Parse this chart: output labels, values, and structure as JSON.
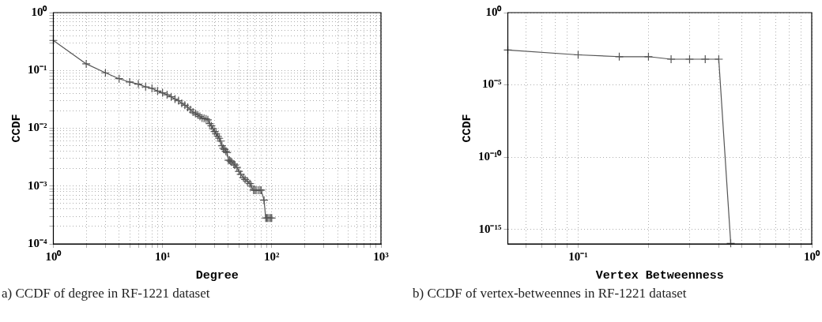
{
  "chart_data": [
    {
      "type": "line",
      "xlabel": "Degree",
      "ylabel": "CCDF",
      "log": "xy",
      "grid": true,
      "marker": "cross",
      "line_style": "solid",
      "xlim": [
        1,
        1000
      ],
      "ylim": [
        0.0001,
        1
      ],
      "xticks": [
        {
          "value": 1,
          "label": "10⁰"
        },
        {
          "value": 2,
          "label": null
        },
        {
          "value": 3,
          "label": null
        },
        {
          "value": 4,
          "label": null
        },
        {
          "value": 5,
          "label": null
        },
        {
          "value": 6,
          "label": null
        },
        {
          "value": 7,
          "label": null
        },
        {
          "value": 8,
          "label": null
        },
        {
          "value": 9,
          "label": null
        },
        {
          "value": 10,
          "label": "10¹"
        },
        {
          "value": 20,
          "label": null
        },
        {
          "value": 30,
          "label": null
        },
        {
          "value": 40,
          "label": null
        },
        {
          "value": 50,
          "label": null
        },
        {
          "value": 60,
          "label": null
        },
        {
          "value": 70,
          "label": null
        },
        {
          "value": 80,
          "label": null
        },
        {
          "value": 90,
          "label": null
        },
        {
          "value": 100,
          "label": "10²"
        },
        {
          "value": 200,
          "label": null
        },
        {
          "value": 300,
          "label": null
        },
        {
          "value": 400,
          "label": null
        },
        {
          "value": 500,
          "label": null
        },
        {
          "value": 600,
          "label": null
        },
        {
          "value": 700,
          "label": null
        },
        {
          "value": 800,
          "label": null
        },
        {
          "value": 900,
          "label": null
        },
        {
          "value": 1000,
          "label": "10³"
        }
      ],
      "yticks": [
        {
          "value": 0.0001,
          "label": "10⁻⁴"
        },
        {
          "value": 0.0002,
          "label": null
        },
        {
          "value": 0.0003,
          "label": null
        },
        {
          "value": 0.0004,
          "label": null
        },
        {
          "value": 0.0005,
          "label": null
        },
        {
          "value": 0.0006,
          "label": null
        },
        {
          "value": 0.0007,
          "label": null
        },
        {
          "value": 0.0008,
          "label": null
        },
        {
          "value": 0.0009,
          "label": null
        },
        {
          "value": 0.001,
          "label": "10⁻³"
        },
        {
          "value": 0.002,
          "label": null
        },
        {
          "value": 0.003,
          "label": null
        },
        {
          "value": 0.004,
          "label": null
        },
        {
          "value": 0.005,
          "label": null
        },
        {
          "value": 0.006,
          "label": null
        },
        {
          "value": 0.007,
          "label": null
        },
        {
          "value": 0.008,
          "label": null
        },
        {
          "value": 0.009,
          "label": null
        },
        {
          "value": 0.01,
          "label": "10⁻²"
        },
        {
          "value": 0.02,
          "label": null
        },
        {
          "value": 0.03,
          "label": null
        },
        {
          "value": 0.04,
          "label": null
        },
        {
          "value": 0.05,
          "label": null
        },
        {
          "value": 0.06,
          "label": null
        },
        {
          "value": 0.07,
          "label": null
        },
        {
          "value": 0.08,
          "label": null
        },
        {
          "value": 0.09,
          "label": null
        },
        {
          "value": 0.1,
          "label": "10⁻¹"
        },
        {
          "value": 0.2,
          "label": null
        },
        {
          "value": 0.3,
          "label": null
        },
        {
          "value": 0.4,
          "label": null
        },
        {
          "value": 0.5,
          "label": null
        },
        {
          "value": 0.6,
          "label": null
        },
        {
          "value": 0.7,
          "label": null
        },
        {
          "value": 0.8,
          "label": null
        },
        {
          "value": 0.9,
          "label": null
        },
        {
          "value": 1,
          "label": "10⁰"
        }
      ],
      "annotations": [
        "a) CCDF of degree in RF-1221 dataset"
      ],
      "series": [
        {
          "color": "#555555",
          "x": [
            1,
            2,
            3,
            4,
            5,
            6,
            7,
            8,
            9,
            10,
            11,
            12,
            13,
            14,
            15,
            16,
            17,
            18,
            19,
            20,
            21,
            22,
            23,
            24,
            25,
            26,
            27,
            28,
            29,
            30,
            31,
            32,
            33,
            34,
            35,
            36,
            37,
            38,
            39,
            40,
            41,
            42,
            43,
            45,
            46,
            48,
            50,
            52,
            55,
            57,
            60,
            63,
            65,
            68,
            70,
            72,
            75,
            78,
            80,
            85,
            88,
            90,
            92,
            95,
            98,
            100
          ],
          "values": [
            0.33,
            0.13,
            0.091,
            0.072,
            0.063,
            0.058,
            0.052,
            0.049,
            0.044,
            0.041,
            0.038,
            0.035,
            0.032,
            0.03,
            0.027,
            0.025,
            0.023,
            0.021,
            0.019,
            0.018,
            0.017,
            0.016,
            0.015,
            0.0148,
            0.0145,
            0.014,
            0.012,
            0.011,
            0.0098,
            0.0088,
            0.008,
            0.0073,
            0.0067,
            0.006,
            0.005,
            0.0045,
            0.0043,
            0.004,
            0.0038,
            0.0028,
            0.0028,
            0.0027,
            0.0026,
            0.0024,
            0.0023,
            0.0021,
            0.0018,
            0.0016,
            0.0014,
            0.0013,
            0.0012,
            0.0011,
            0.001,
            0.00085,
            0.00085,
            0.00085,
            0.00085,
            0.00085,
            0.00085,
            0.00057,
            0.00028,
            0.00028,
            0.00028,
            0.00028,
            0.00028,
            0.00028
          ]
        }
      ]
    },
    {
      "type": "line",
      "xlabel": "Vertex Betweenness",
      "ylabel": "CCDF",
      "log": "xy",
      "grid": true,
      "marker": "cross",
      "line_style": "solid",
      "xlim": [
        0.05,
        1
      ],
      "ylim": [
        1e-16,
        1
      ],
      "xticks": [
        {
          "value": 0.06,
          "label": null
        },
        {
          "value": 0.07,
          "label": null
        },
        {
          "value": 0.08,
          "label": null
        },
        {
          "value": 0.09,
          "label": null
        },
        {
          "value": 0.1,
          "label": "10⁻¹"
        },
        {
          "value": 0.2,
          "label": null
        },
        {
          "value": 0.3,
          "label": null
        },
        {
          "value": 0.4,
          "label": null
        },
        {
          "value": 0.5,
          "label": null
        },
        {
          "value": 0.6,
          "label": null
        },
        {
          "value": 0.7,
          "label": null
        },
        {
          "value": 0.8,
          "label": null
        },
        {
          "value": 0.9,
          "label": null
        },
        {
          "value": 1,
          "label": "10⁰"
        }
      ],
      "yticks": [
        {
          "value": 1e-15,
          "label": "10⁻¹⁵"
        },
        {
          "value": 1e-10,
          "label": "10⁻¹⁰"
        },
        {
          "value": 1e-05,
          "label": "10⁻⁵"
        },
        {
          "value": 1,
          "label": "10⁰"
        }
      ],
      "annotations": [
        "b) CCDF of vertex-betweennes in RF-1221 dataset"
      ],
      "series": [
        {
          "color": "#555555",
          "x": [
            0.05,
            0.1,
            0.15,
            0.2,
            0.25,
            0.3,
            0.35,
            0.4,
            0.45
          ],
          "values": [
            0.0026,
            0.0012,
            0.0009,
            0.0009,
            0.0006,
            0.0006,
            0.0006,
            0.0006,
            1.1e-16
          ]
        }
      ]
    }
  ]
}
